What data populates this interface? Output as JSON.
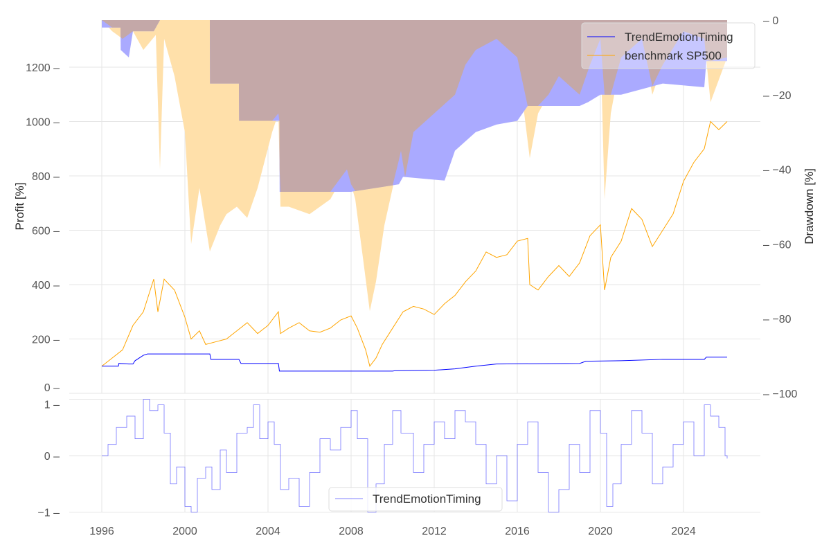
{
  "chart_data": [
    {
      "type": "line",
      "panel": "main",
      "ylabel": "Profit [%]",
      "y2label": "Drawdown [%]",
      "xlim": [
        1994.6,
        2027.2
      ],
      "ylim": [
        0,
        1370
      ],
      "y2lim": [
        -100,
        0
      ],
      "grid": true,
      "legend_position": "top-right",
      "xticks": [
        "1996",
        "2000",
        "2004",
        "2008",
        "2012",
        "2016",
        "2020",
        "2024"
      ],
      "yticks": [
        "0",
        "200",
        "400",
        "600",
        "800",
        "1000",
        "1200"
      ],
      "y2ticks": [
        "0",
        "−20",
        "−40",
        "−60",
        "−80",
        "−100"
      ],
      "series": [
        {
          "name": "TrendEmotionTiming",
          "color": "#0000ff",
          "x": [
            1996,
            1996.8,
            1996.82,
            1997.3,
            1997.5,
            1997.6,
            1998,
            1998.2,
            2001.2,
            2001.25,
            2002.6,
            2002.7,
            2004.5,
            2004.55,
            2010,
            2010.1,
            2012,
            2013,
            2014,
            2015,
            2019,
            2019.3,
            2021,
            2023,
            2025,
            2025.1,
            2026.1
          ],
          "values": [
            100,
            100,
            110,
            108,
            108,
            120,
            140,
            145,
            145,
            125,
            125,
            110,
            110,
            82,
            82,
            83,
            85,
            90,
            100,
            108,
            110,
            118,
            120,
            125,
            125,
            133,
            133
          ]
        },
        {
          "name": "benchmark SP500",
          "color": "#ffa500",
          "x": [
            1996,
            1996.5,
            1997,
            1997.5,
            1998,
            1998.5,
            1998.7,
            1999,
            1999.5,
            2000,
            2000.3,
            2000.7,
            2001,
            2001.5,
            2002,
            2002.5,
            2003,
            2003.5,
            2004,
            2004.5,
            2004.6,
            2005,
            2005.5,
            2006,
            2006.5,
            2007,
            2007.5,
            2008,
            2008.3,
            2008.7,
            2008.9,
            2009.2,
            2009.5,
            2010,
            2010.5,
            2011,
            2011.5,
            2012,
            2012.5,
            2013,
            2013.5,
            2014,
            2014.5,
            2015,
            2015.5,
            2016,
            2016.5,
            2016.6,
            2017,
            2017.5,
            2018,
            2018.5,
            2019,
            2019.5,
            2020,
            2020.2,
            2020.5,
            2021,
            2021.5,
            2022,
            2022.5,
            2023,
            2023.5,
            2024,
            2024.5,
            2025,
            2025.3,
            2025.7,
            2026.1
          ],
          "values": [
            100,
            130,
            160,
            250,
            300,
            420,
            300,
            420,
            380,
            280,
            200,
            230,
            180,
            190,
            200,
            230,
            260,
            220,
            250,
            300,
            220,
            240,
            260,
            230,
            225,
            240,
            270,
            285,
            240,
            160,
            100,
            130,
            180,
            240,
            300,
            320,
            310,
            290,
            330,
            360,
            410,
            450,
            520,
            500,
            510,
            560,
            570,
            400,
            380,
            430,
            470,
            430,
            480,
            580,
            620,
            380,
            500,
            560,
            680,
            640,
            540,
            600,
            660,
            780,
            850,
            900,
            1000,
            970,
            1000
          ]
        }
      ],
      "drawdown": [
        {
          "name": "TrendEmotionTiming drawdown",
          "color": "#aaaaff",
          "x": [
            1996,
            1996.9,
            1996.91,
            1997.3,
            1997.5,
            1998.2,
            1998.5,
            1998.8,
            2001.2,
            2001.21,
            2002.6,
            2002.61,
            2004.55,
            2004.56,
            2008,
            2010.3,
            2010.5,
            2012.5,
            2013,
            2014,
            2015,
            2016,
            2016.5,
            2019,
            2019.4,
            2020,
            2021,
            2023,
            2025,
            2025.1,
            2026.1
          ],
          "values": [
            -2,
            -2,
            -8,
            -10,
            -3,
            -3,
            -3,
            0,
            0,
            -17,
            -17,
            -27,
            -27,
            -46,
            -46,
            -44,
            -42,
            -43,
            -35,
            -30,
            -28,
            -27,
            -23,
            -23,
            -22,
            -20,
            -20,
            -17,
            -18,
            -11,
            -11
          ]
        },
        {
          "name": "benchmark SP500 drawdown",
          "color": "#ffe0aa",
          "x": [
            1996,
            1996.5,
            1997,
            1997.5,
            1998,
            1998.6,
            1998.8,
            1999,
            1999.5,
            2000,
            2000.3,
            2000.7,
            2001.2,
            2001.7,
            2002,
            2002.5,
            2003,
            2003.5,
            2004.2,
            2004.5,
            2004.6,
            2005,
            2006,
            2007,
            2007.8,
            2008.2,
            2008.6,
            2008.9,
            2009.2,
            2009.6,
            2010,
            2010.4,
            2010.6,
            2011,
            2012,
            2013,
            2013.5,
            2014,
            2015,
            2016,
            2016.6,
            2017,
            2017.5,
            2018,
            2019,
            2019.5,
            2020,
            2020.2,
            2020.5,
            2021,
            2022,
            2022.5,
            2023,
            2024,
            2025,
            2025.3,
            2026.1
          ],
          "values": [
            0,
            -3,
            -5,
            -3,
            -8,
            -4,
            -40,
            -5,
            -15,
            -30,
            -60,
            -45,
            -62,
            -55,
            -52,
            -50,
            -53,
            -45,
            -30,
            -25,
            -50,
            -50,
            -52,
            -48,
            -40,
            -48,
            -65,
            -78,
            -70,
            -55,
            -45,
            -35,
            -42,
            -30,
            -25,
            -20,
            -12,
            -8,
            -5,
            -10,
            -37,
            -25,
            -20,
            -15,
            -20,
            -12,
            -5,
            -48,
            -25,
            -10,
            -5,
            -20,
            -12,
            -3,
            -5,
            -22,
            -10
          ]
        }
      ]
    },
    {
      "type": "line",
      "panel": "indicator",
      "ylim": [
        -1,
        1
      ],
      "yticks": [
        "−1",
        "0",
        "1"
      ],
      "legend_position": "lower-center",
      "series": [
        {
          "name": "TrendEmotionTiming",
          "color": "#0000ff",
          "x": [
            1996,
            1996.3,
            1996.7,
            1997.2,
            1997.6,
            1998,
            1998.3,
            1998.7,
            1999,
            1999.3,
            1999.6,
            2000,
            2000.3,
            2000.6,
            2001,
            2001.3,
            2001.7,
            2002,
            2002.5,
            2003,
            2003.3,
            2003.6,
            2004,
            2004.3,
            2004.6,
            2005,
            2005.5,
            2006,
            2006.5,
            2007,
            2007.5,
            2008,
            2008.3,
            2008.8,
            2009.2,
            2009.6,
            2010,
            2010.4,
            2011,
            2011.5,
            2012,
            2012.5,
            2013,
            2013.5,
            2014,
            2014.5,
            2015,
            2015.5,
            2016,
            2016.5,
            2017,
            2017.5,
            2018,
            2018.5,
            2019,
            2019.5,
            2020,
            2020.3,
            2020.6,
            2021,
            2021.5,
            2022,
            2022.5,
            2023,
            2023.5,
            2024,
            2024.5,
            2025,
            2025.3,
            2025.7,
            2026,
            2026.1
          ],
          "values": [
            0,
            0.2,
            0.5,
            0.7,
            0.3,
            1.0,
            0.8,
            0.9,
            0.4,
            -0.5,
            -0.2,
            -0.9,
            -1,
            -0.4,
            -0.2,
            -0.6,
            0.1,
            -0.3,
            0.4,
            0.5,
            0.9,
            0.3,
            0.6,
            0.2,
            -0.6,
            -0.4,
            -0.9,
            -0.3,
            0.3,
            0.1,
            0.5,
            0.8,
            0.3,
            -1,
            -0.5,
            0.2,
            0.8,
            0.4,
            -0.3,
            0.2,
            0.6,
            0.3,
            0.8,
            0.6,
            0.2,
            -0.5,
            0,
            -0.8,
            0.2,
            0.6,
            -0.3,
            -1,
            -0.6,
            0.2,
            -0.3,
            0.8,
            0.4,
            -0.9,
            -0.5,
            0.2,
            0.8,
            0.4,
            -0.5,
            -0.2,
            0.2,
            0.6,
            0,
            0.9,
            0.7,
            0.5,
            0,
            -0.05
          ]
        }
      ]
    }
  ]
}
